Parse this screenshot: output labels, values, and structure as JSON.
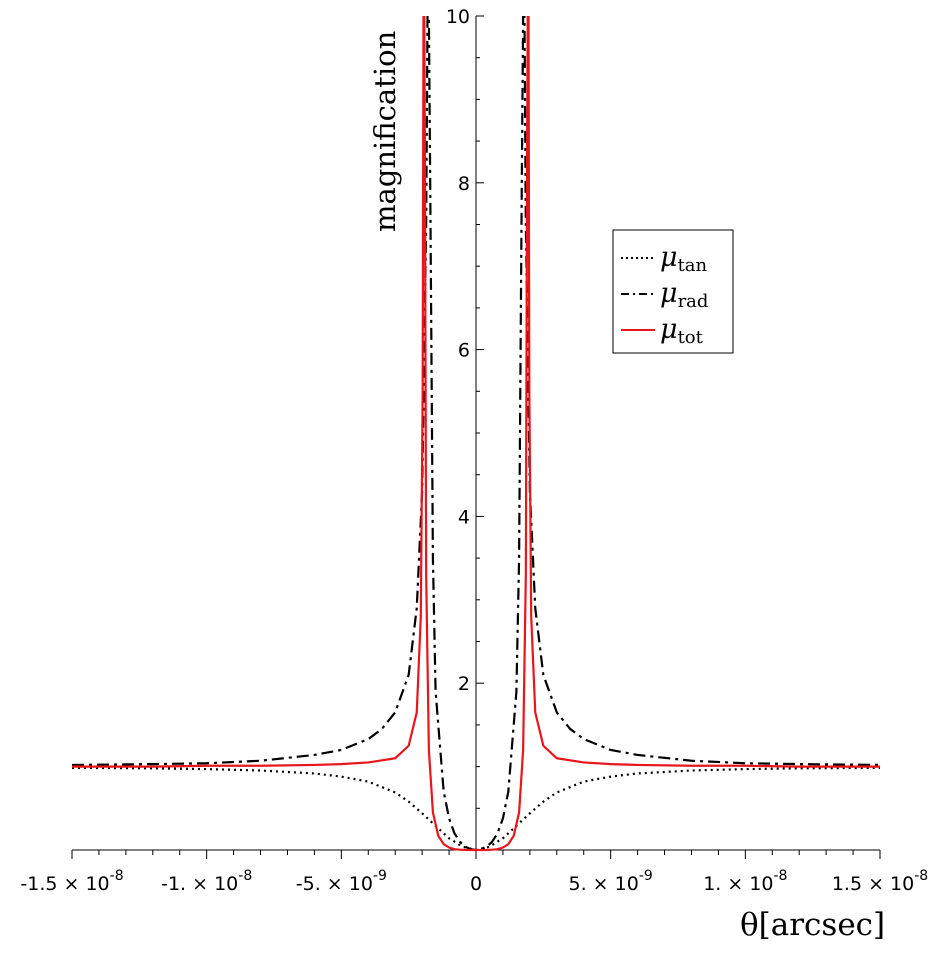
{
  "chart_data": {
    "type": "line",
    "title": "",
    "xlabel": "θ[arcsec]",
    "ylabel": "magnification",
    "xlim": [
      -1.5e-08,
      1.5e-08
    ],
    "ylim": [
      0,
      10
    ],
    "x_ticks": [
      {
        "value": -1.5e-08,
        "label": "-1.5 × 10",
        "exp": "-8"
      },
      {
        "value": -1e-08,
        "label": "-1. × 10",
        "exp": "-8"
      },
      {
        "value": -5e-09,
        "label": "-5. × 10",
        "exp": "-9"
      },
      {
        "value": 0,
        "label": "0",
        "exp": ""
      },
      {
        "value": 5e-09,
        "label": "5. × 10",
        "exp": "-9"
      },
      {
        "value": 1e-08,
        "label": "1. × 10",
        "exp": "-8"
      },
      {
        "value": 1.5e-08,
        "label": "1.5 × 10",
        "exp": "-8"
      }
    ],
    "y_ticks": [
      {
        "value": 2,
        "label": "2"
      },
      {
        "value": 4,
        "label": "4"
      },
      {
        "value": 6,
        "label": "6"
      },
      {
        "value": 8,
        "label": "8"
      },
      {
        "value": 10,
        "label": "10"
      }
    ],
    "grid": false,
    "legend_position": "top-right",
    "series": [
      {
        "name": "μ",
        "subscript": "tan",
        "color": "#000000",
        "style": "dotted",
        "x": [
          -1.5e-08,
          -1.2e-08,
          -1e-08,
          -8e-09,
          -6e-09,
          -5e-09,
          -4e-09,
          -3e-09,
          -2.5e-09,
          -2e-09,
          -1.5e-09,
          -1e-09,
          -5e-10,
          0,
          5e-10,
          1e-09,
          1.5e-09,
          2e-09,
          2.5e-09,
          3e-09,
          4e-09,
          5e-09,
          6e-09,
          8e-09,
          1e-08,
          1.2e-08,
          1.5e-08
        ],
        "y": [
          0.985,
          0.979,
          0.97,
          0.953,
          0.918,
          0.88,
          0.82,
          0.69,
          0.58,
          0.44,
          0.29,
          0.14,
          0.04,
          0,
          0.04,
          0.14,
          0.29,
          0.44,
          0.58,
          0.69,
          0.82,
          0.88,
          0.918,
          0.953,
          0.97,
          0.979,
          0.985
        ]
      },
      {
        "name": "μ",
        "subscript": "rad",
        "color": "#000000",
        "style": "dash-dot",
        "x": [
          -1.5e-08,
          -1.2e-08,
          -1e-08,
          -8e-09,
          -6e-09,
          -5e-09,
          -4e-09,
          -3.5e-09,
          -3e-09,
          -2.5e-09,
          -2.2e-09,
          -2e-09,
          -1.85e-09,
          -1.8e-09,
          -1.75e-09,
          -1.7e-09,
          -1.6e-09,
          -1.5e-09,
          -1.2e-09,
          -1e-09,
          -8e-10,
          -6e-10,
          -4e-10,
          -2e-10,
          0,
          2e-10,
          4e-10,
          6e-10,
          8e-10,
          1e-09,
          1.2e-09,
          1.5e-09,
          1.6e-09,
          1.7e-09,
          1.75e-09,
          1.8e-09,
          1.85e-09,
          2e-09,
          2.2e-09,
          2.5e-09,
          3e-09,
          3.5e-09,
          4e-09,
          5e-09,
          6e-09,
          8e-09,
          1e-08,
          1.2e-08,
          1.5e-08
        ],
        "y": [
          1.02,
          1.03,
          1.04,
          1.07,
          1.14,
          1.2,
          1.33,
          1.45,
          1.65,
          2.1,
          2.9,
          4.3,
          7.5,
          10.0,
          10.0,
          8.0,
          3.5,
          1.9,
          0.7,
          0.38,
          0.2,
          0.1,
          0.04,
          0.01,
          0,
          0.01,
          0.04,
          0.1,
          0.2,
          0.38,
          0.7,
          1.9,
          3.5,
          8.0,
          10.0,
          10.0,
          7.5,
          4.3,
          2.9,
          2.1,
          1.65,
          1.45,
          1.33,
          1.2,
          1.14,
          1.07,
          1.04,
          1.03,
          1.02
        ]
      },
      {
        "name": "μ",
        "subscript": "tot",
        "color": "#e8151b",
        "style": "solid",
        "x": [
          -1.5e-08,
          -1.2e-08,
          -1e-08,
          -8e-09,
          -6e-09,
          -5e-09,
          -4e-09,
          -3e-09,
          -2.5e-09,
          -2.2e-09,
          -2.05e-09,
          -1.98e-09,
          -1.95e-09,
          -1.92e-09,
          -1.9e-09,
          -1.85e-09,
          -1.75e-09,
          -1.6e-09,
          -1.4e-09,
          -1.2e-09,
          -1e-09,
          -8e-10,
          -6e-10,
          -4e-10,
          -2e-10,
          0,
          2e-10,
          4e-10,
          6e-10,
          8e-10,
          1e-09,
          1.2e-09,
          1.4e-09,
          1.6e-09,
          1.75e-09,
          1.85e-09,
          1.9e-09,
          1.92e-09,
          1.95e-09,
          1.98e-09,
          2.05e-09,
          2.2e-09,
          2.5e-09,
          3e-09,
          4e-09,
          5e-09,
          6e-09,
          8e-09,
          1e-08,
          1.2e-08,
          1.5e-08
        ],
        "y": [
          1.0,
          1.0,
          1.01,
          1.01,
          1.02,
          1.03,
          1.05,
          1.1,
          1.25,
          1.65,
          2.8,
          5.5,
          10.0,
          10.0,
          8.5,
          3.3,
          1.2,
          0.45,
          0.17,
          0.07,
          0.03,
          0.01,
          0.004,
          0.001,
          0,
          0,
          0,
          0.001,
          0.004,
          0.01,
          0.03,
          0.07,
          0.17,
          0.45,
          1.2,
          3.3,
          8.5,
          10.0,
          10.0,
          5.5,
          2.8,
          1.65,
          1.25,
          1.1,
          1.05,
          1.03,
          1.02,
          1.01,
          1.01,
          1.0,
          1.0
        ]
      }
    ]
  }
}
